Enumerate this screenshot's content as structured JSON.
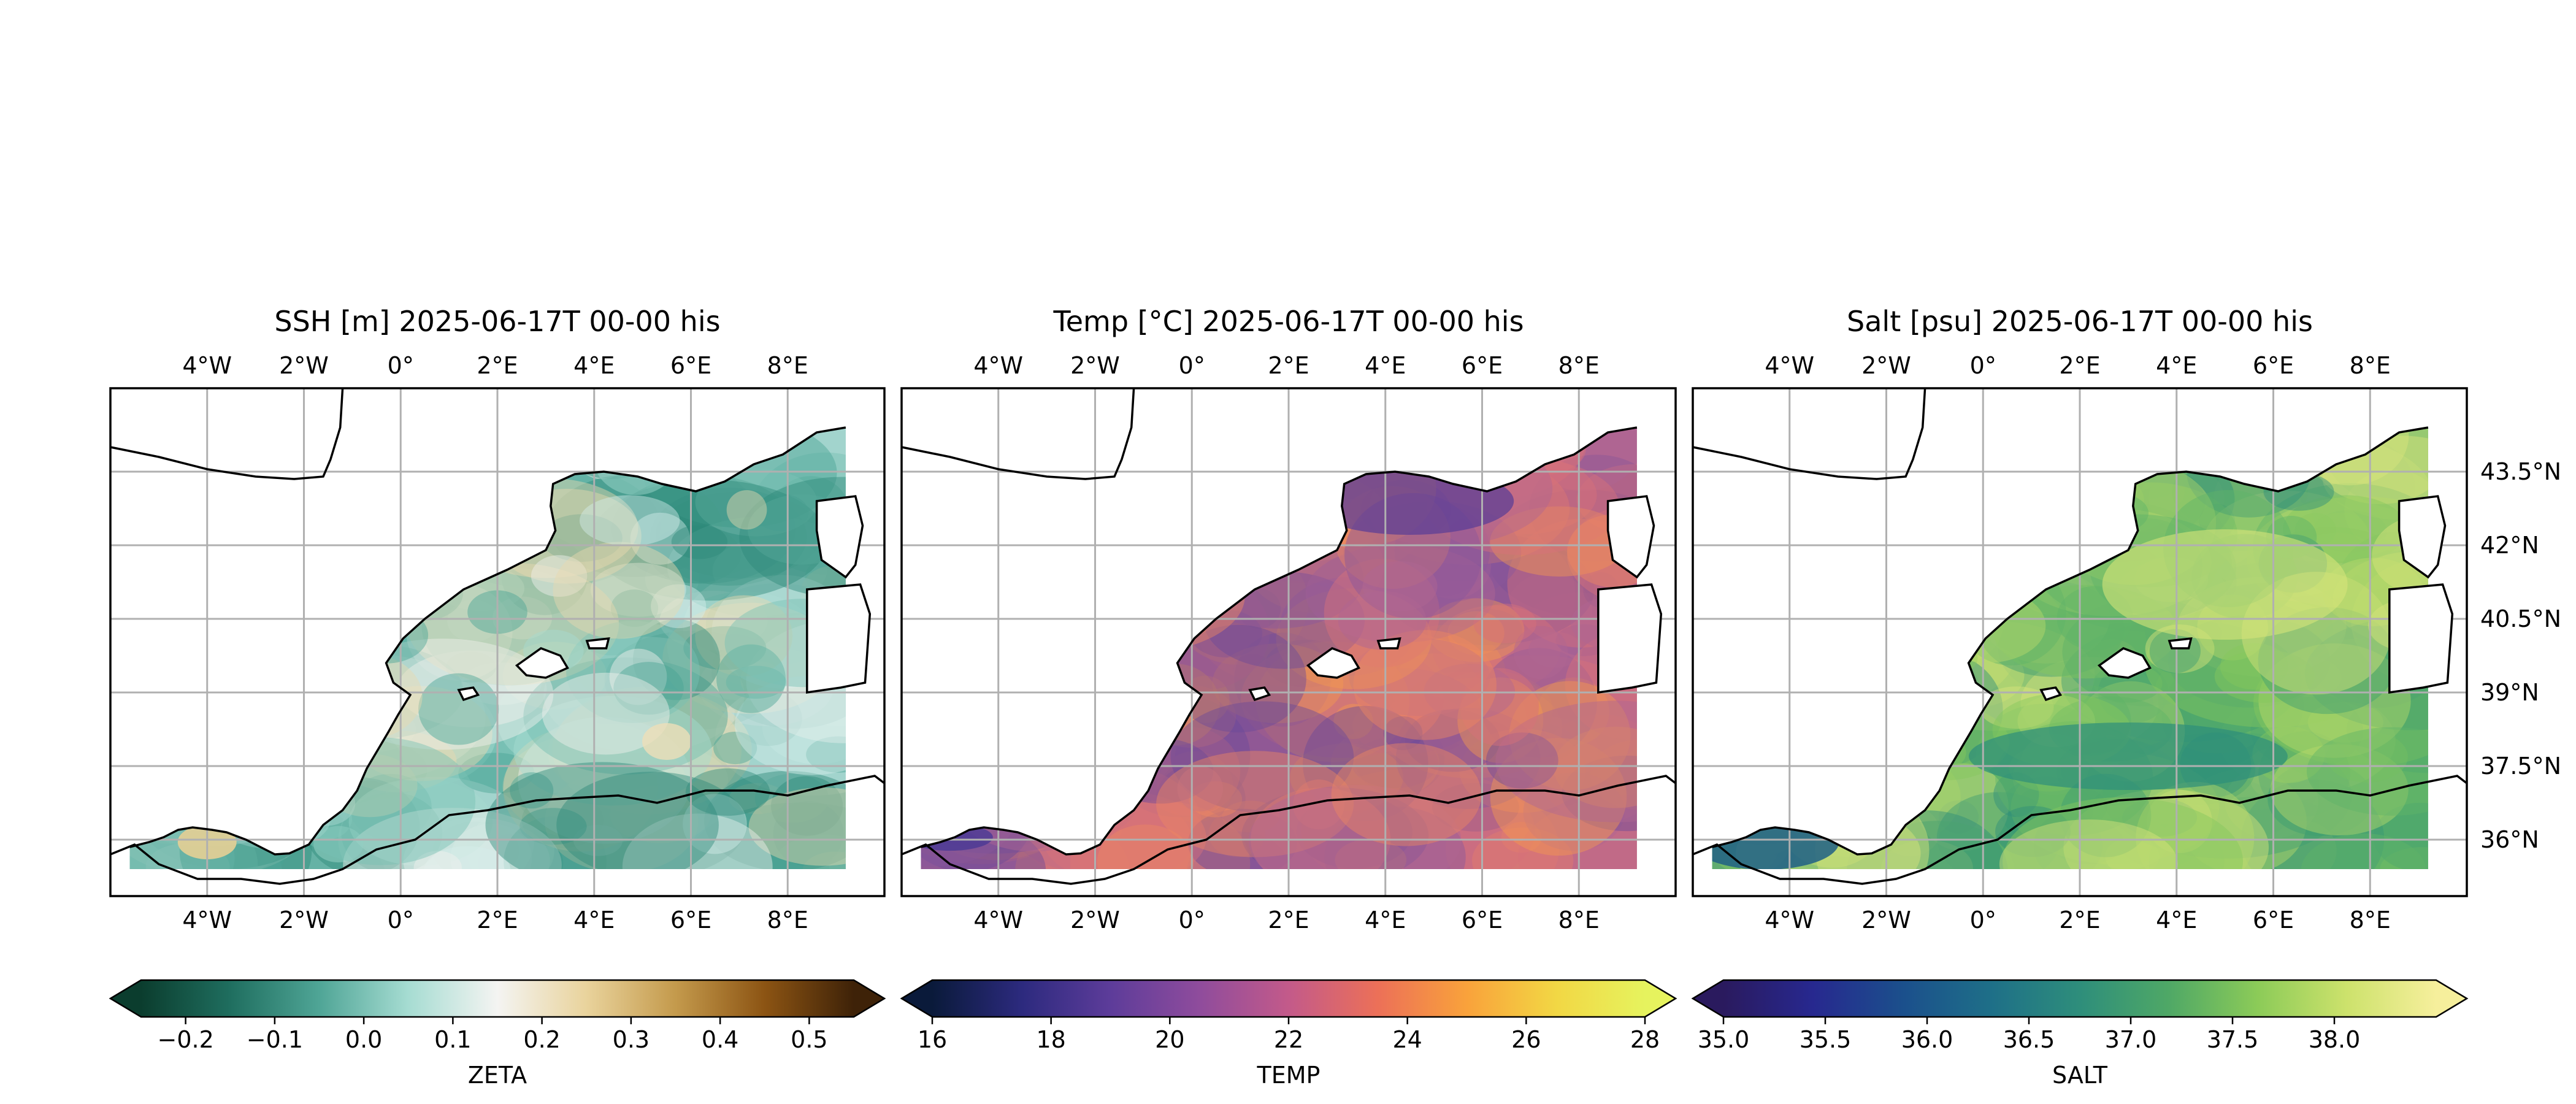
{
  "chart_data": [
    {
      "type": "heatmap",
      "title": "SSH [m] 2025-06-17T 00-00 his",
      "lon_ticks": [
        "4°W",
        "2°W",
        "0°",
        "2°E",
        "4°E",
        "6°E",
        "8°E"
      ],
      "lat_ticks": [
        "43.5°N",
        "42°N",
        "40.5°N",
        "39°N",
        "37.5°N",
        "36°N"
      ],
      "lat_labels_side": "none",
      "field": "ZETA",
      "colorbar": {
        "label": "ZETA",
        "ticks": [
          "−0.2",
          "−0.1",
          "0.0",
          "0.1",
          "0.2",
          "0.3",
          "0.4",
          "0.5"
        ],
        "tick_values": [
          -0.2,
          -0.1,
          0.0,
          0.1,
          0.2,
          0.3,
          0.4,
          0.5
        ],
        "range": [
          -0.25,
          0.55
        ],
        "colors": [
          "#0b3d2e",
          "#1f6e5f",
          "#4fa596",
          "#a6dcd2",
          "#f4f4f2",
          "#e9d39c",
          "#c49a4c",
          "#8c5413",
          "#3e2208"
        ],
        "extend": "both"
      },
      "ocean_palette": [
        "#2f8a7a",
        "#4aa395",
        "#78c0b4",
        "#a6dbd1",
        "#d4eeea",
        "#f2f2ee",
        "#e8dab0"
      ]
    },
    {
      "type": "heatmap",
      "title": "Temp [°C] 2025-06-17T 00-00 his",
      "lon_ticks": [
        "4°W",
        "2°W",
        "0°",
        "2°E",
        "4°E",
        "6°E",
        "8°E"
      ],
      "lat_ticks": [
        "43.5°N",
        "42°N",
        "40.5°N",
        "39°N",
        "37.5°N",
        "36°N"
      ],
      "lat_labels_side": "none",
      "field": "TEMP",
      "colorbar": {
        "label": "TEMP",
        "ticks": [
          "16",
          "18",
          "20",
          "22",
          "24",
          "26",
          "28"
        ],
        "tick_values": [
          16,
          18,
          20,
          22,
          24,
          26,
          28
        ],
        "range": [
          16,
          28
        ],
        "colors": [
          "#0a1a3a",
          "#2c2a7e",
          "#5d3c9a",
          "#8f4c9c",
          "#c35a8a",
          "#ec7058",
          "#f9a23b",
          "#f2d744",
          "#e6f35e"
        ],
        "extend": "both"
      },
      "ocean_palette": [
        "#6a4a9a",
        "#8a579c",
        "#b06592",
        "#d8727a",
        "#ee8761",
        "#f59a4f"
      ]
    },
    {
      "type": "heatmap",
      "title": "Salt [psu] 2025-06-17T 00-00 his",
      "lon_ticks": [
        "4°W",
        "2°W",
        "0°",
        "2°E",
        "4°E",
        "6°E",
        "8°E"
      ],
      "lat_ticks": [
        "43.5°N",
        "42°N",
        "40.5°N",
        "39°N",
        "37.5°N",
        "36°N"
      ],
      "lat_labels_side": "right",
      "field": "SALT",
      "colorbar": {
        "label": "SALT",
        "ticks": [
          "35.0",
          "35.5",
          "36.0",
          "36.5",
          "37.0",
          "37.5",
          "38.0"
        ],
        "tick_values": [
          35.0,
          35.5,
          36.0,
          36.5,
          37.0,
          37.5,
          38.0
        ],
        "range": [
          35.0,
          38.5
        ],
        "colors": [
          "#2a1a5e",
          "#27288f",
          "#1b4f8c",
          "#1e6f88",
          "#2e8e7b",
          "#4fa866",
          "#8ccb58",
          "#cde26c",
          "#f6ef9c"
        ],
        "extend": "both"
      },
      "ocean_palette": [
        "#2e8e7b",
        "#3f9d72",
        "#5fb369",
        "#86c75e",
        "#b7d96a",
        "#d9e57c"
      ]
    }
  ]
}
